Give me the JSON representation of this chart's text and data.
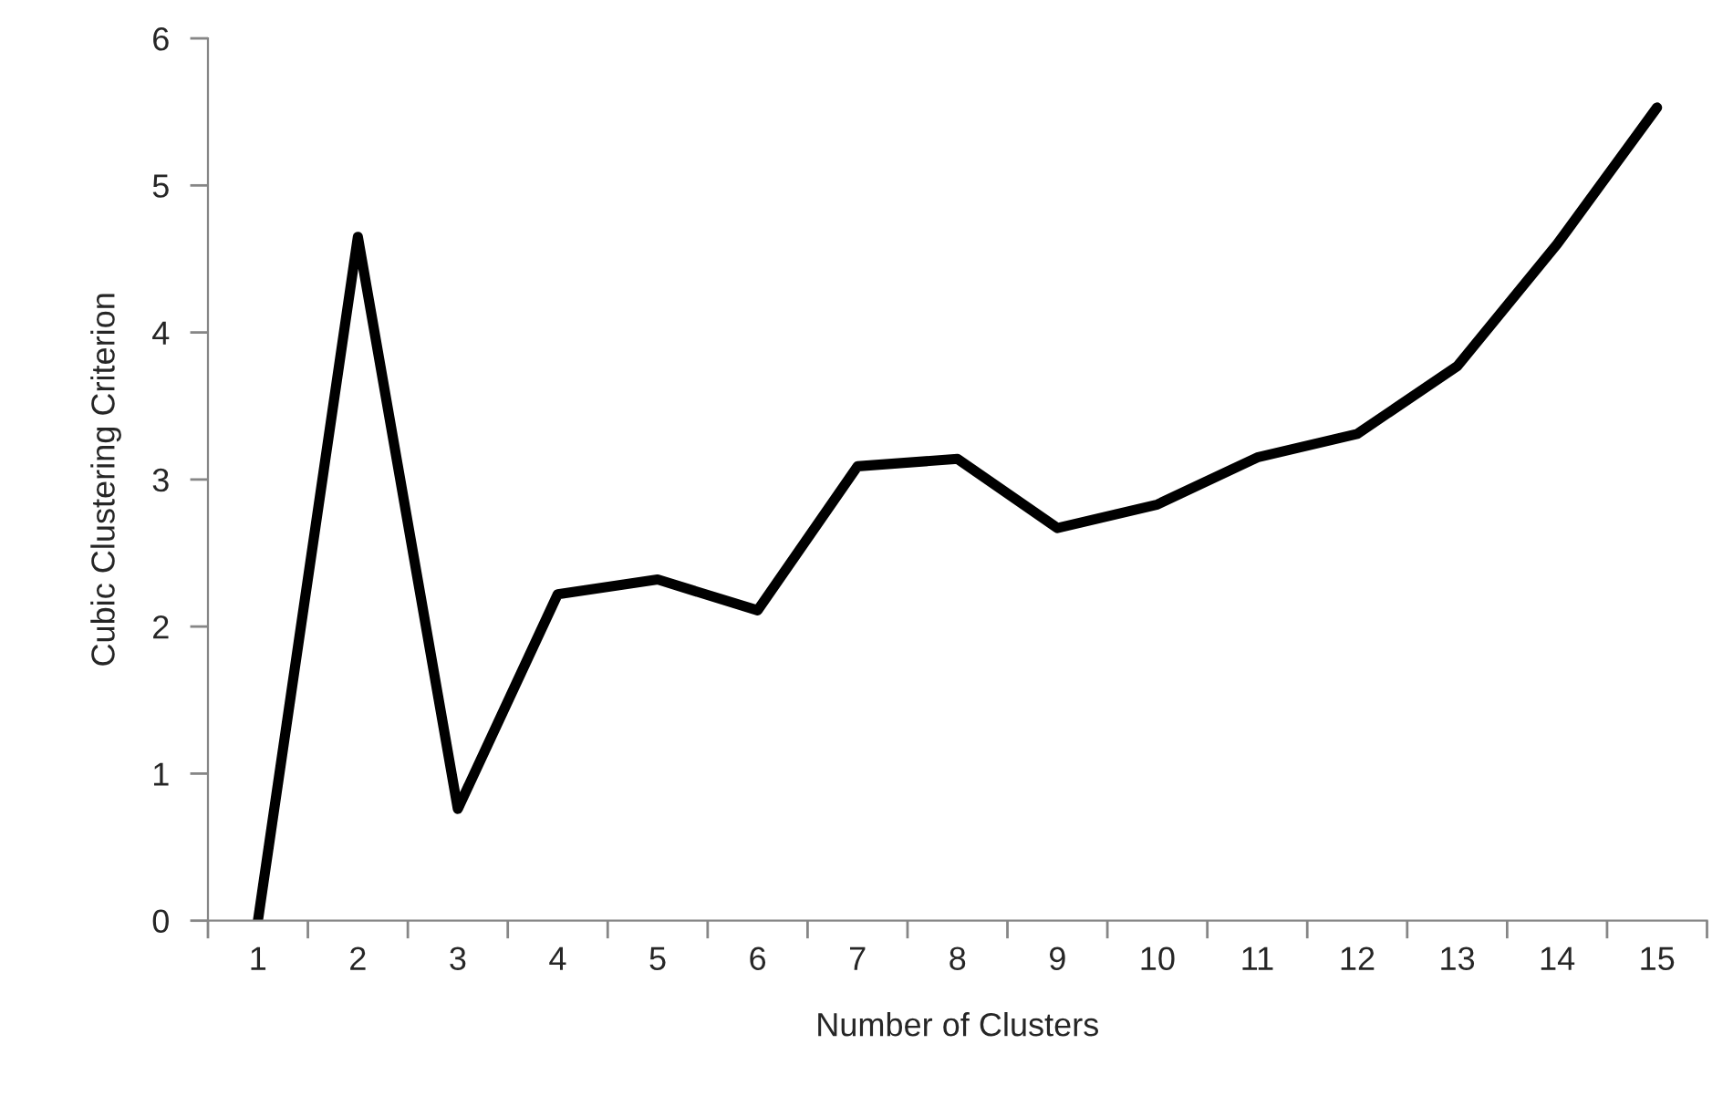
{
  "chart_data": {
    "type": "line",
    "xlabel": "Number of Clusters",
    "ylabel": "Cubic Clustering Criterion",
    "categories": [
      "1",
      "2",
      "3",
      "4",
      "5",
      "6",
      "7",
      "8",
      "9",
      "10",
      "11",
      "12",
      "13",
      "14",
      "15"
    ],
    "series": [
      {
        "color": "#000000",
        "values": [
          0,
          4.65,
          0.76,
          2.22,
          2.32,
          2.11,
          3.09,
          3.14,
          2.67,
          2.83,
          3.15,
          3.31,
          3.77,
          4.6,
          5.53
        ]
      }
    ],
    "ylim": [
      0,
      6
    ],
    "yticks": [
      0,
      1,
      2,
      3,
      4,
      5,
      6
    ],
    "grid": false,
    "legend": false,
    "marker": "none",
    "line_style": "solid"
  }
}
